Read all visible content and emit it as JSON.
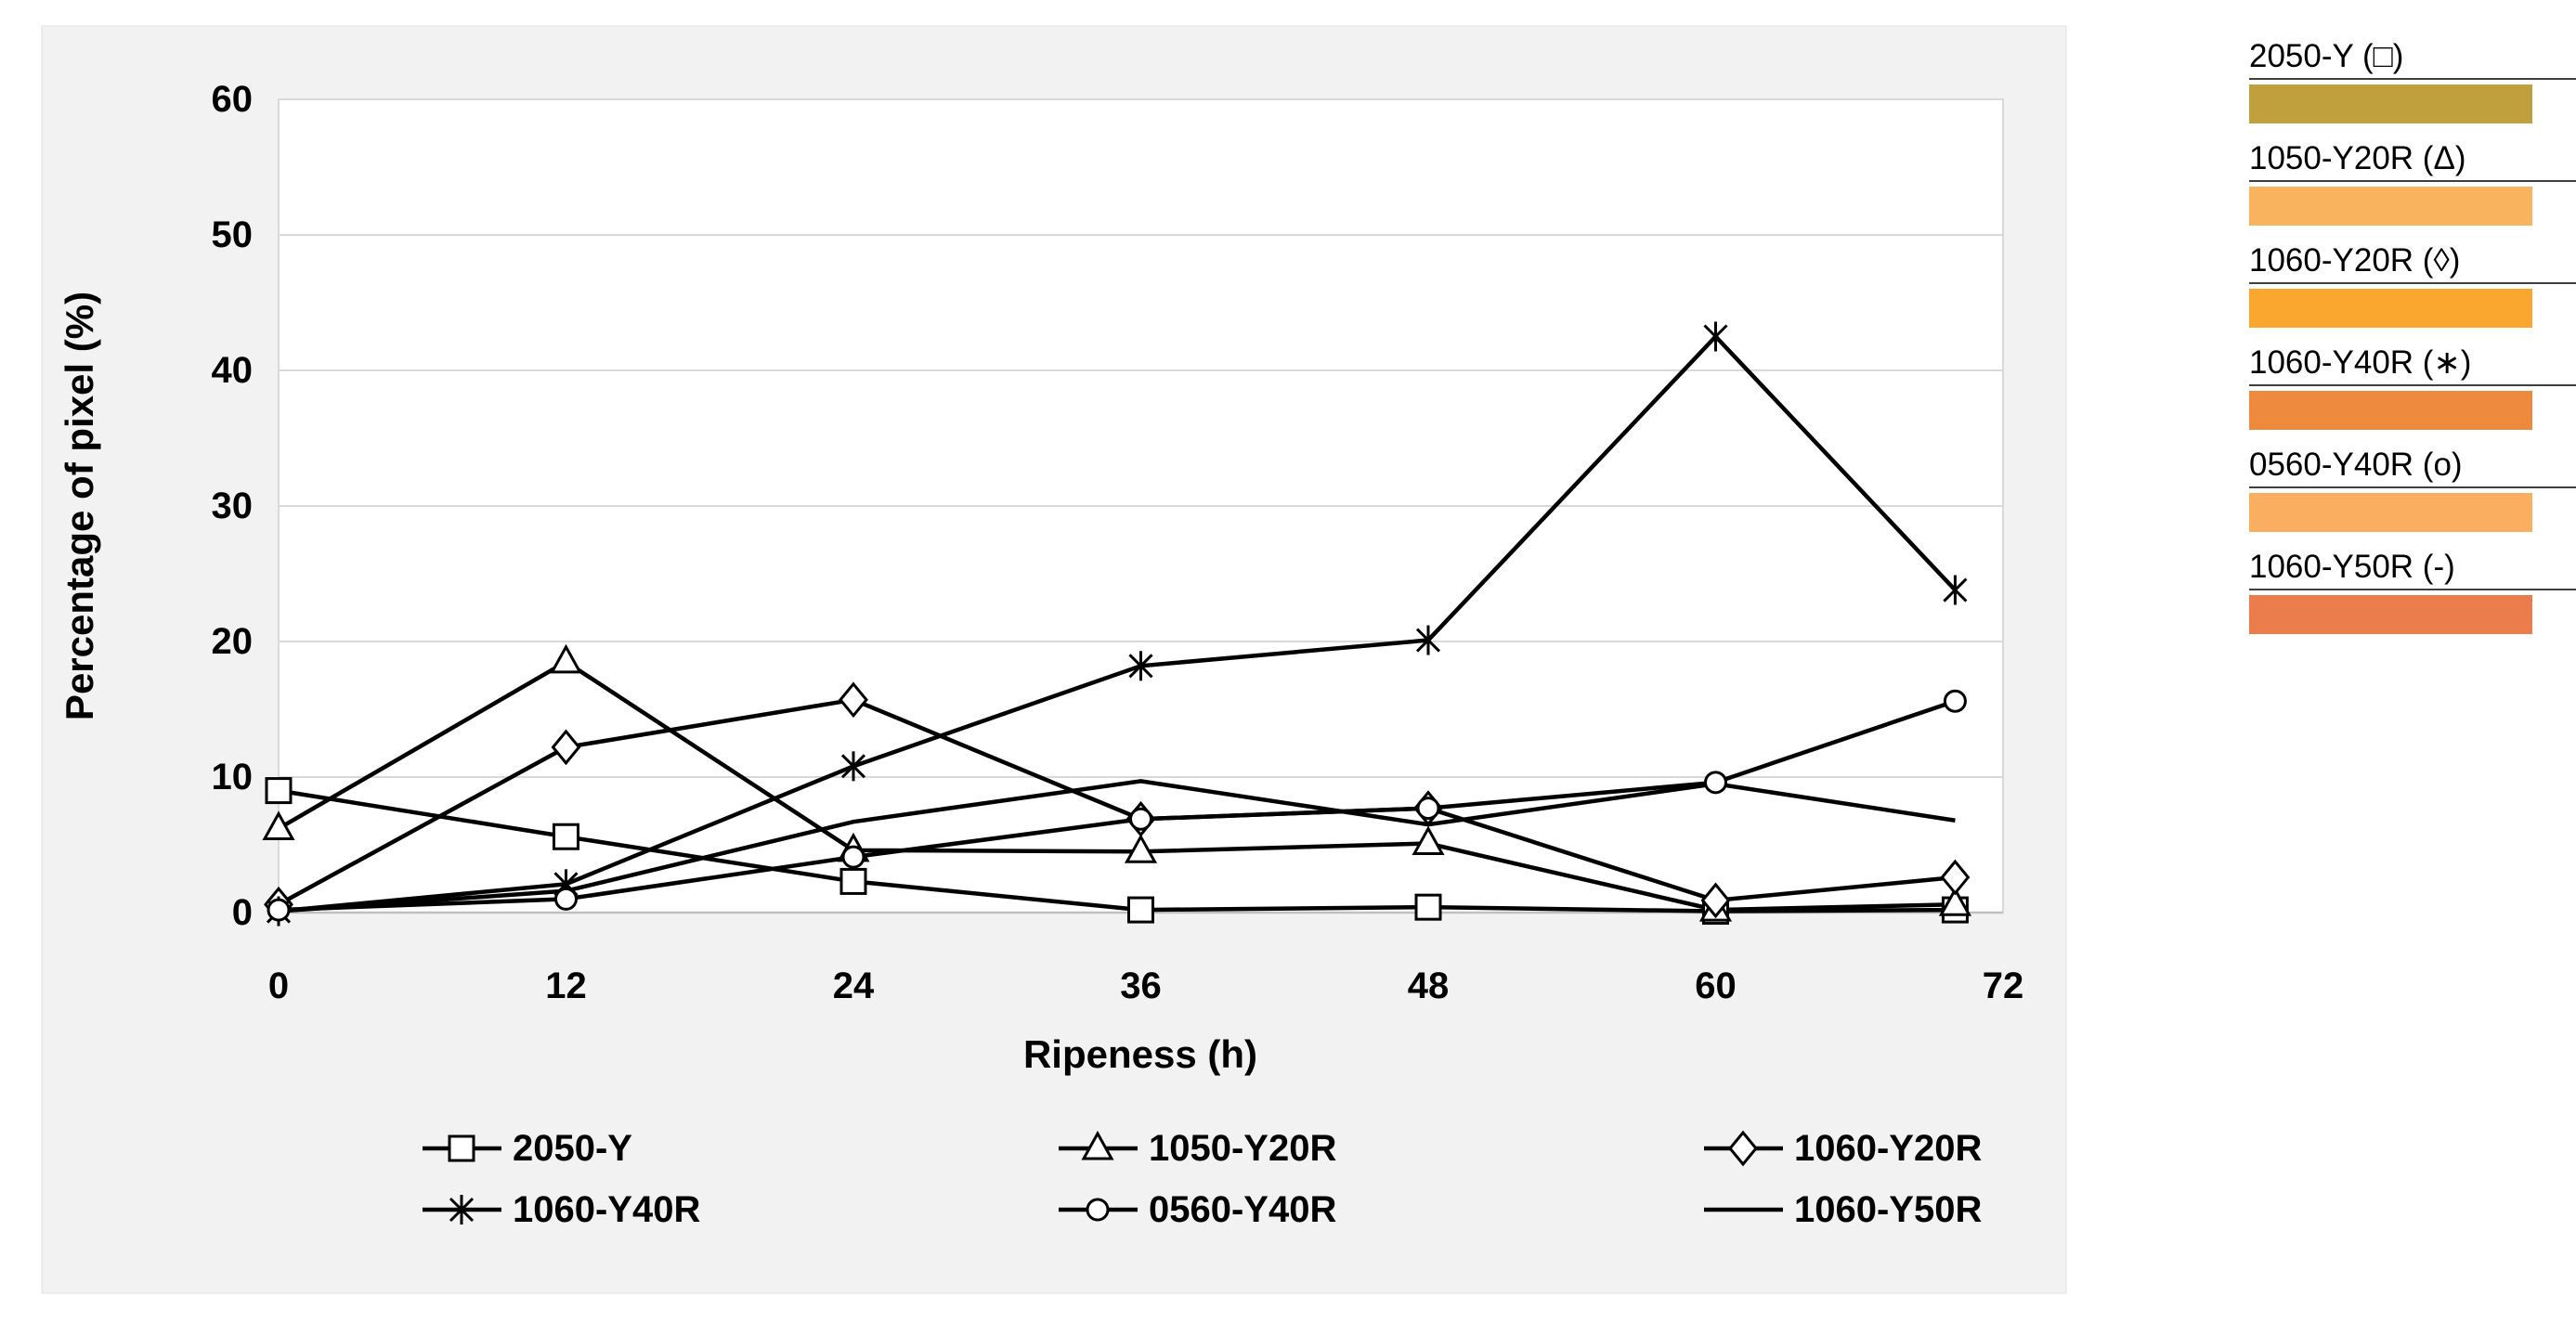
{
  "page": {
    "panel_bg": "#F2F2F2",
    "plot_bg": "#FFFFFF",
    "grid_color": "#D9D9D9",
    "axis_color": "#BFBFBF",
    "series_color": "#000000"
  },
  "chart_data": {
    "type": "line",
    "title": "",
    "xlabel": "Ripeness (h)",
    "ylabel": "Percentage of pixel (%)",
    "x": [
      0,
      12,
      24,
      36,
      48,
      60,
      70
    ],
    "xticks": [
      0,
      12,
      24,
      36,
      48,
      60,
      72
    ],
    "yticks": [
      0,
      10,
      20,
      30,
      40,
      50,
      60
    ],
    "xlim": [
      0,
      72
    ],
    "ylim": [
      0,
      60
    ],
    "grid": "horizontal",
    "legend_position": "bottom",
    "series": [
      {
        "name": "2050-Y",
        "marker": "square",
        "values": [
          9.0,
          5.6,
          2.3,
          0.2,
          0.4,
          0.1,
          0.2
        ]
      },
      {
        "name": "1050-Y20R",
        "marker": "triangle",
        "values": [
          6.2,
          18.5,
          4.6,
          4.5,
          5.1,
          0.2,
          0.6
        ]
      },
      {
        "name": "1060-Y20R",
        "marker": "diamond",
        "values": [
          0.6,
          12.2,
          15.7,
          6.9,
          7.7,
          0.9,
          2.6
        ]
      },
      {
        "name": "1060-Y40R",
        "marker": "asterisk",
        "values": [
          0.1,
          2.1,
          10.8,
          18.2,
          20.1,
          42.5,
          23.8
        ]
      },
      {
        "name": "0560-Y40R",
        "marker": "circle",
        "values": [
          0.2,
          1.0,
          4.1,
          6.9,
          7.7,
          9.6,
          15.6
        ]
      },
      {
        "name": "1060-Y50R",
        "marker": "none",
        "values": [
          0.1,
          1.6,
          6.7,
          9.7,
          6.5,
          9.5,
          6.8
        ]
      }
    ]
  },
  "right_legend": {
    "items": [
      {
        "label": "2050-Y (□)",
        "color": "#C0A03C"
      },
      {
        "label": "1050-Y20R (Δ)",
        "color": "#F9B35F"
      },
      {
        "label": "1060-Y20R (◊)",
        "color": "#F9A72F"
      },
      {
        "label": "1060-Y40R (∗)",
        "color": "#EE8A3D"
      },
      {
        "label": "0560-Y40R (o)",
        "color": "#FAAE60"
      },
      {
        "label": "1060-Y50R (-)",
        "color": "#EB7D4D"
      }
    ]
  }
}
